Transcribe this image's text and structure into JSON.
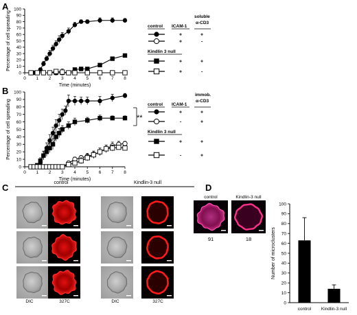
{
  "figure": {
    "panels": {
      "A": "A",
      "B": "B",
      "C": "C",
      "D": "D"
    }
  },
  "panelA": {
    "legend": {
      "headers": [
        "control",
        "ICAM-1",
        "soluble",
        "α-CD3"
      ],
      "rows": [
        {
          "group": "control",
          "icam": "+",
          "cd3": "+",
          "marker": "filled-circle"
        },
        {
          "group": "",
          "icam": "+",
          "cd3": "-",
          "marker": "open-circle"
        },
        {
          "group": "Kindlin 3 null",
          "icam": "+",
          "cd3": "+",
          "marker": "filled-square"
        },
        {
          "group": "",
          "icam": "+",
          "cd3": "-",
          "marker": "open-square"
        }
      ],
      "group2_label": "Kindlin 3 null"
    }
  },
  "panelB": {
    "legend": {
      "headers": [
        "control",
        "ICAM-1",
        "immob.",
        "α-CD3"
      ],
      "rows": [
        {
          "icam": "+",
          "cd3": "+",
          "marker": "filled-circle"
        },
        {
          "icam": "-",
          "cd3": "+",
          "marker": "open-circle"
        },
        {
          "icam": "+",
          "cd3": "+",
          "marker": "filled-square"
        },
        {
          "icam": "-",
          "cd3": "+",
          "marker": "open-square"
        }
      ],
      "group2_label": "Kindlin 3 null",
      "significance": "**"
    }
  },
  "chart_data": [
    {
      "id": "A",
      "type": "line",
      "xlabel": "Time (minutes)",
      "ylabel": "Percentage of cell spreading",
      "xlim": [
        0,
        8
      ],
      "ylim": [
        0,
        100
      ],
      "xticks": [
        0,
        1,
        2,
        3,
        4,
        5,
        6,
        7,
        8
      ],
      "yticks": [
        0,
        10,
        20,
        30,
        40,
        50,
        60,
        70,
        80,
        90,
        100
      ],
      "series": [
        {
          "marker": "filled-circle",
          "x": [
            0.5,
            0.75,
            1.0,
            1.25,
            1.5,
            1.75,
            2.0,
            2.25,
            2.5,
            2.75,
            3.0,
            3.5,
            4.0,
            4.5,
            5.0,
            6.0,
            7.0,
            8.0
          ],
          "y": [
            0,
            0,
            0,
            5,
            14,
            22,
            30,
            38,
            45,
            52,
            58,
            65,
            75,
            80,
            80,
            82,
            82,
            82
          ],
          "err": [
            0,
            0,
            0,
            2,
            4,
            4,
            5,
            5,
            5,
            6,
            5,
            5,
            4,
            3,
            3,
            4,
            4,
            3
          ]
        },
        {
          "marker": "open-circle",
          "x": [
            0.5,
            1,
            1.5,
            2,
            2.5,
            3,
            3.5,
            4,
            5,
            6,
            7,
            8
          ],
          "y": [
            0,
            0,
            0,
            0,
            0,
            0,
            0,
            0,
            0,
            0,
            0,
            0
          ],
          "err": [
            0,
            0,
            0,
            0,
            0,
            0,
            0,
            0,
            0,
            0,
            0,
            0
          ]
        },
        {
          "marker": "filled-square",
          "x": [
            0.5,
            1,
            1.5,
            2,
            2.5,
            3,
            3.5,
            4,
            4.5,
            5,
            6,
            7,
            8
          ],
          "y": [
            0,
            0,
            0,
            0,
            0,
            0,
            0,
            5,
            6,
            6,
            12,
            22,
            27
          ],
          "err": [
            0,
            0,
            0,
            0,
            0,
            0,
            0,
            0,
            0,
            0,
            0,
            0,
            0
          ]
        },
        {
          "marker": "open-square",
          "x": [
            0.5,
            1,
            1.5,
            2,
            2.5,
            3,
            3.5,
            4,
            5,
            6,
            7,
            8
          ],
          "y": [
            0,
            0,
            0,
            0,
            2,
            1,
            0,
            0,
            0,
            0,
            0,
            0
          ],
          "err": [
            0,
            0,
            0,
            0,
            3,
            5,
            0,
            0,
            0,
            0,
            0,
            0
          ]
        }
      ]
    },
    {
      "id": "B",
      "type": "line",
      "xlabel": "Time (minutes)",
      "ylabel": "Percentage of cell spreading",
      "xlim": [
        0,
        8
      ],
      "ylim": [
        0,
        100
      ],
      "xticks": [
        0,
        1,
        2,
        3,
        4,
        5,
        6,
        7,
        8
      ],
      "yticks": [
        0,
        10,
        20,
        30,
        40,
        50,
        60,
        70,
        80,
        90,
        100
      ],
      "series": [
        {
          "marker": "filled-circle",
          "x": [
            0.5,
            0.75,
            1.0,
            1.25,
            1.5,
            1.75,
            2.0,
            2.25,
            2.5,
            2.75,
            3.0,
            3.25,
            3.5,
            4.0,
            4.5,
            5.0,
            6.0,
            7.0,
            8.0
          ],
          "y": [
            0,
            0,
            0,
            5,
            15,
            25,
            35,
            45,
            55,
            62,
            70,
            75,
            88,
            88,
            88,
            88,
            88,
            92,
            95
          ],
          "err": [
            0,
            0,
            0,
            3,
            6,
            7,
            8,
            8,
            8,
            8,
            7,
            6,
            8,
            6,
            5,
            5,
            6,
            5,
            3
          ]
        },
        {
          "marker": "open-circle",
          "x": [
            0.5,
            0.75,
            1.0,
            1.25,
            1.5,
            1.75,
            2.0,
            2.5,
            3.0,
            3.5,
            4.0,
            4.5,
            5.0,
            5.5,
            6.0,
            6.5,
            7.0,
            7.5,
            8.0
          ],
          "y": [
            0,
            0,
            0,
            0,
            0,
            0,
            0,
            0,
            0,
            5,
            10,
            12,
            14,
            16,
            20,
            24,
            28,
            30,
            31
          ],
          "err": [
            0,
            0,
            0,
            0,
            0,
            0,
            0,
            0,
            0,
            2,
            3,
            3,
            4,
            4,
            5,
            5,
            5,
            4,
            3
          ]
        },
        {
          "marker": "filled-square",
          "x": [
            0.75,
            1.0,
            1.25,
            1.5,
            1.75,
            2.0,
            2.25,
            2.5,
            2.75,
            3.0,
            3.5,
            4.0,
            5.0,
            6.0,
            7.0,
            8.0
          ],
          "y": [
            0,
            2,
            8,
            15,
            20,
            25,
            30,
            40,
            45,
            50,
            55,
            60,
            62,
            65,
            65,
            65
          ],
          "err": [
            0,
            2,
            4,
            5,
            6,
            6,
            7,
            6,
            6,
            5,
            5,
            5,
            4,
            4,
            3,
            3
          ]
        },
        {
          "marker": "open-square",
          "x": [
            0.5,
            0.75,
            1.0,
            1.25,
            1.5,
            1.75,
            2.0,
            2.25,
            2.5,
            2.75,
            3.0,
            3.5,
            4.0,
            4.5,
            5.0,
            5.5,
            6.0,
            6.5,
            7.0,
            7.5,
            8.0
          ],
          "y": [
            0,
            0,
            0,
            0,
            0,
            0,
            0,
            0,
            0,
            0,
            0,
            3,
            5,
            8,
            12,
            16,
            20,
            24,
            25,
            26,
            25
          ],
          "err": [
            0,
            0,
            0,
            0,
            0,
            0,
            0,
            0,
            0,
            0,
            0,
            2,
            3,
            4,
            4,
            5,
            5,
            5,
            4,
            3,
            3
          ]
        }
      ]
    },
    {
      "id": "D",
      "type": "bar",
      "categories": [
        "control",
        "Kindlin-3 null"
      ],
      "values": [
        63,
        14
      ],
      "errors": [
        23,
        4
      ],
      "ylabel": "Number of microclusters",
      "ylim": [
        0,
        100
      ],
      "yticks": [
        0,
        10,
        20,
        30,
        40,
        50,
        60,
        70,
        80,
        90,
        100
      ]
    }
  ],
  "panelC": {
    "groups": [
      {
        "label": "control",
        "col_labels": [
          "DIC",
          "327C"
        ]
      },
      {
        "label": "Kindlin-3 null",
        "col_labels": [
          "DIC",
          "327C"
        ]
      }
    ]
  },
  "panelD": {
    "images": [
      {
        "label": "control",
        "count": "91"
      },
      {
        "label": "Kindlin-3 null",
        "count": "18"
      }
    ]
  }
}
